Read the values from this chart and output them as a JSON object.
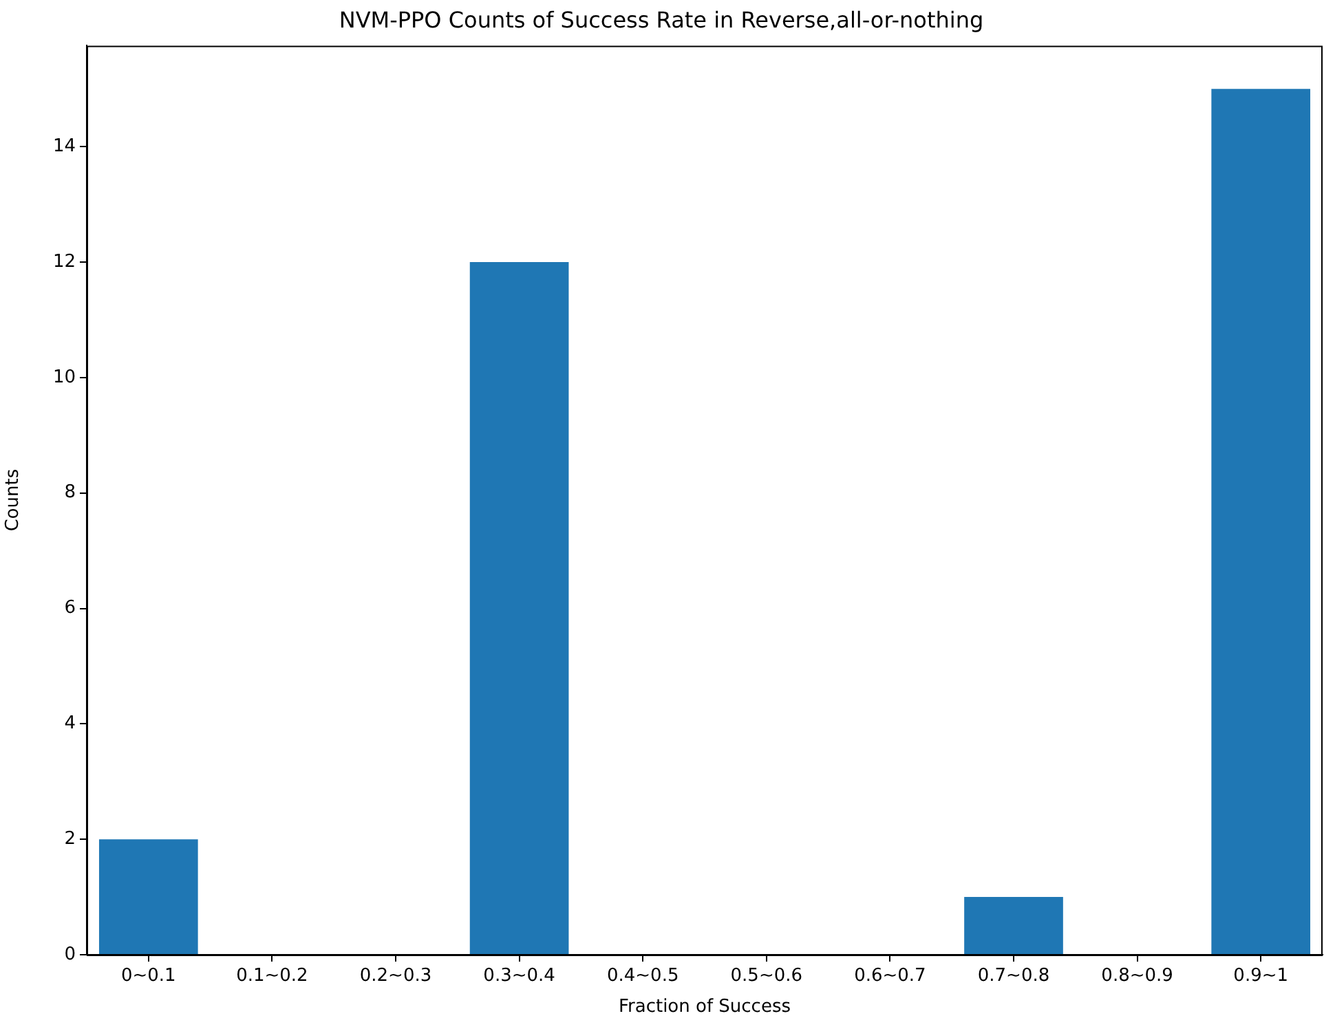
{
  "chart_data": {
    "type": "bar",
    "title": "NVM-PPO Counts of Success Rate in Reverse,all-or-nothing",
    "xlabel": "Fraction of Success",
    "ylabel": "Counts",
    "categories": [
      "0~0.1",
      "0.1~0.2",
      "0.2~0.3",
      "0.3~0.4",
      "0.4~0.5",
      "0.5~0.6",
      "0.6~0.7",
      "0.7~0.8",
      "0.8~0.9",
      "0.9~1"
    ],
    "values": [
      2,
      0,
      0,
      12,
      0,
      0,
      0,
      1,
      0,
      15
    ],
    "color": "#1f77b4",
    "ylim": [
      0,
      15.75
    ],
    "yticks": [
      0,
      2,
      4,
      6,
      8,
      10,
      12,
      14
    ],
    "grid": false
  }
}
